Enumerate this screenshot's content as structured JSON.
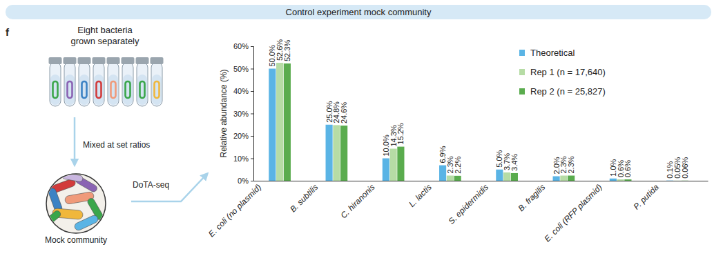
{
  "header": {
    "title": "Control experiment mock community"
  },
  "panel": "f",
  "diagram": {
    "step1": [
      "Eight bacteria",
      "grown separately"
    ],
    "step2": "Mixed at set ratios",
    "method": "DoTA-seq",
    "result": "Mock community"
  },
  "chart_data": {
    "type": "bar",
    "y_label": "Relative abundance (%)",
    "categories": [
      "E. coli (no plasmid)",
      "B. subtilis",
      "C. hiranonis",
      "L. lactis",
      "S. epidermidis",
      "B. fragilis",
      "E. coli (RFP plasmid)",
      "P. putida"
    ],
    "series": [
      {
        "name": "Theoretical",
        "color": "#5ab4e5",
        "values": [
          50.0,
          25.0,
          10.0,
          6.9,
          5.0,
          2.0,
          1.0,
          0.1
        ],
        "value_labels": [
          "50.0%",
          "25.0%",
          "10.0%",
          "6.9%",
          "5.0%",
          "2.0%",
          "1.0%",
          "0.1%"
        ]
      },
      {
        "name": "Rep 1 (n = 17,640)",
        "color": "#b6dca5",
        "values": [
          52.6,
          24.8,
          14.3,
          2.3,
          3.7,
          2.3,
          0.6,
          0.05
        ],
        "value_labels": [
          "52.6%",
          "24.8%",
          "14.3%",
          "2.3%",
          "3.7%",
          "2.3%",
          "0.6%",
          "0.05%"
        ]
      },
      {
        "name": "Rep 2 (n = 25,827)",
        "color": "#5aac4e",
        "values": [
          52.3,
          24.6,
          15.2,
          2.2,
          3.4,
          2.3,
          0.6,
          0.06
        ],
        "value_labels": [
          "52.3%",
          "24.6%",
          "15.2%",
          "2.2%",
          "3.4%",
          "2.3%",
          "0.6%",
          "0.06%"
        ]
      }
    ],
    "ylim": [
      0,
      60
    ],
    "yticks": [
      {
        "value": 0,
        "label": "0%"
      },
      {
        "value": 10,
        "label": "10%"
      },
      {
        "value": 20,
        "label": "20%"
      },
      {
        "value": 30,
        "label": "30%"
      },
      {
        "value": 40,
        "label": "40%"
      },
      {
        "value": 50,
        "label": "50%"
      },
      {
        "value": 60,
        "label": "60%"
      }
    ],
    "grid": false,
    "legend": "top-right",
    "data_labels": true
  }
}
